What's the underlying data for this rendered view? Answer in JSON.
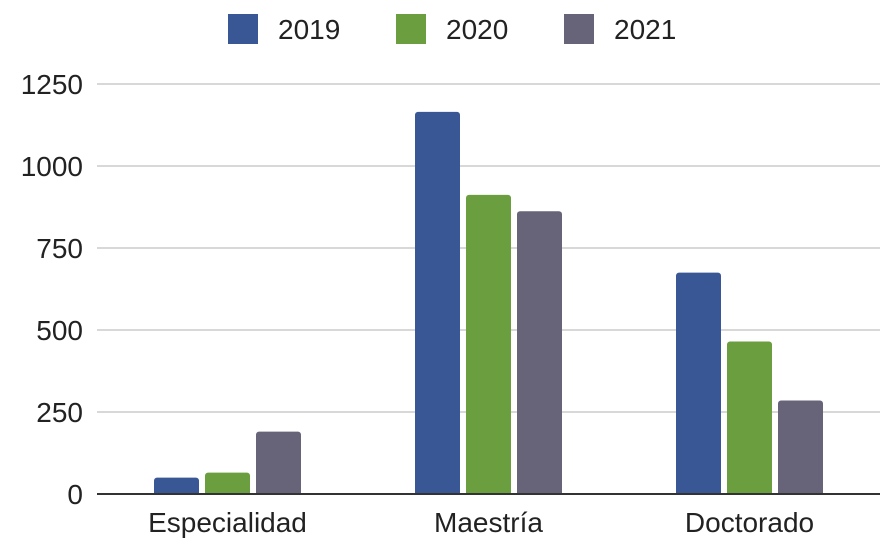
{
  "chart_data": {
    "type": "bar",
    "categories": [
      "Especialidad",
      "Maestría",
      "Doctorado"
    ],
    "series": [
      {
        "name": "2019",
        "color": "#3a5795",
        "values": [
          50,
          1165,
          675
        ]
      },
      {
        "name": "2020",
        "color": "#6a9e3f",
        "values": [
          65,
          912,
          465
        ]
      },
      {
        "name": "2021",
        "color": "#676379",
        "values": [
          190,
          862,
          285
        ]
      }
    ],
    "title": "",
    "xlabel": "",
    "ylabel": "",
    "ylim": [
      0,
      1250
    ],
    "yticks": [
      0,
      250,
      500,
      750,
      1000,
      1250
    ],
    "ytick_labels": [
      "0",
      "250",
      "500",
      "750",
      "1000",
      "1250"
    ],
    "grid": true,
    "legend": "top-center",
    "gridline_color": "#cccccc",
    "axis_color": "#333333",
    "text_color": "#222222"
  }
}
